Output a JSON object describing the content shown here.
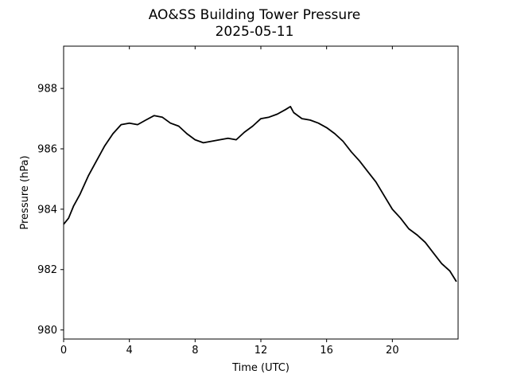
{
  "chart_data": {
    "type": "line",
    "title": "AO&SS Building Tower Pressure",
    "subtitle": "2025-05-11",
    "xlabel": "Time (UTC)",
    "ylabel": "Pressure (hPa)",
    "xlim": [
      0,
      24
    ],
    "ylim": [
      979.7,
      989.4
    ],
    "x_ticks": [
      0,
      4,
      8,
      12,
      16,
      20
    ],
    "x_tick_labels": [
      "0",
      "4",
      "8",
      "12",
      "16",
      "20"
    ],
    "y_ticks": [
      980,
      982,
      984,
      986,
      988
    ],
    "y_tick_labels": [
      "980",
      "982",
      "984",
      "986",
      "988"
    ],
    "grid": false,
    "legend": "none",
    "line_color": "#000000",
    "series": [
      {
        "x": [
          0,
          0.3,
          0.6,
          1.0,
          1.5,
          2.0,
          2.5,
          3.0,
          3.5,
          4.0,
          4.5,
          5.0,
          5.5,
          6.0,
          6.5,
          7.0,
          7.5,
          8.0,
          8.5,
          9.0,
          9.5,
          10.0,
          10.5,
          11.0,
          11.5,
          12.0,
          12.5,
          13.0,
          13.5,
          13.8,
          14.0,
          14.5,
          15.0,
          15.5,
          16.0,
          16.5,
          17.0,
          17.5,
          18.0,
          18.5,
          19.0,
          19.5,
          20.0,
          20.5,
          21.0,
          21.5,
          22.0,
          22.5,
          23.0,
          23.5,
          23.9
        ],
        "values": [
          983.5,
          983.7,
          984.1,
          984.5,
          985.1,
          985.6,
          986.1,
          986.5,
          986.8,
          986.85,
          986.8,
          986.95,
          987.1,
          987.05,
          986.85,
          986.75,
          986.5,
          986.3,
          986.2,
          986.25,
          986.3,
          986.35,
          986.3,
          986.55,
          986.75,
          987.0,
          987.05,
          987.15,
          987.3,
          987.4,
          987.2,
          987.0,
          986.95,
          986.85,
          986.7,
          986.5,
          986.25,
          985.9,
          985.6,
          985.25,
          984.9,
          984.45,
          984.0,
          983.7,
          983.35,
          983.15,
          982.9,
          982.55,
          982.2,
          981.95,
          981.6
        ]
      }
    ]
  }
}
